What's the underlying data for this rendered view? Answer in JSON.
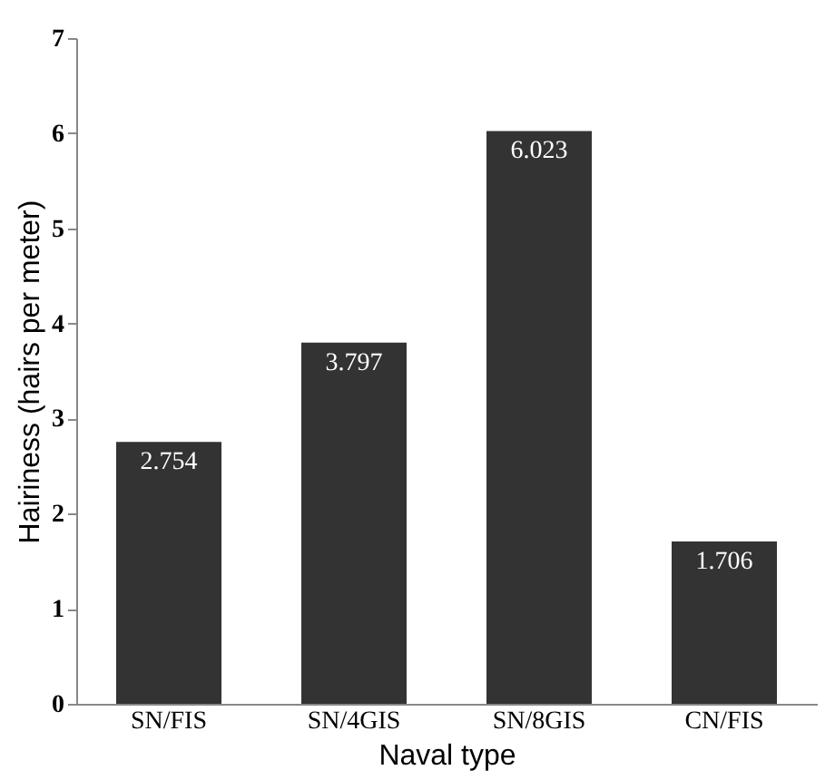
{
  "chart_data": {
    "type": "bar",
    "xlabel": "Naval type",
    "ylabel": "Hairiness (hairs per meter)",
    "categories": [
      "SN/FIS",
      "SN/4GIS",
      "SN/8GIS",
      "CN/FIS"
    ],
    "values": [
      2.754,
      3.797,
      6.023,
      1.706
    ],
    "color": "#333333",
    "ylim": [
      0,
      7
    ],
    "yticks": [
      0,
      1,
      2,
      3,
      4,
      5,
      6,
      7
    ],
    "grid": false,
    "data_labels": true
  }
}
